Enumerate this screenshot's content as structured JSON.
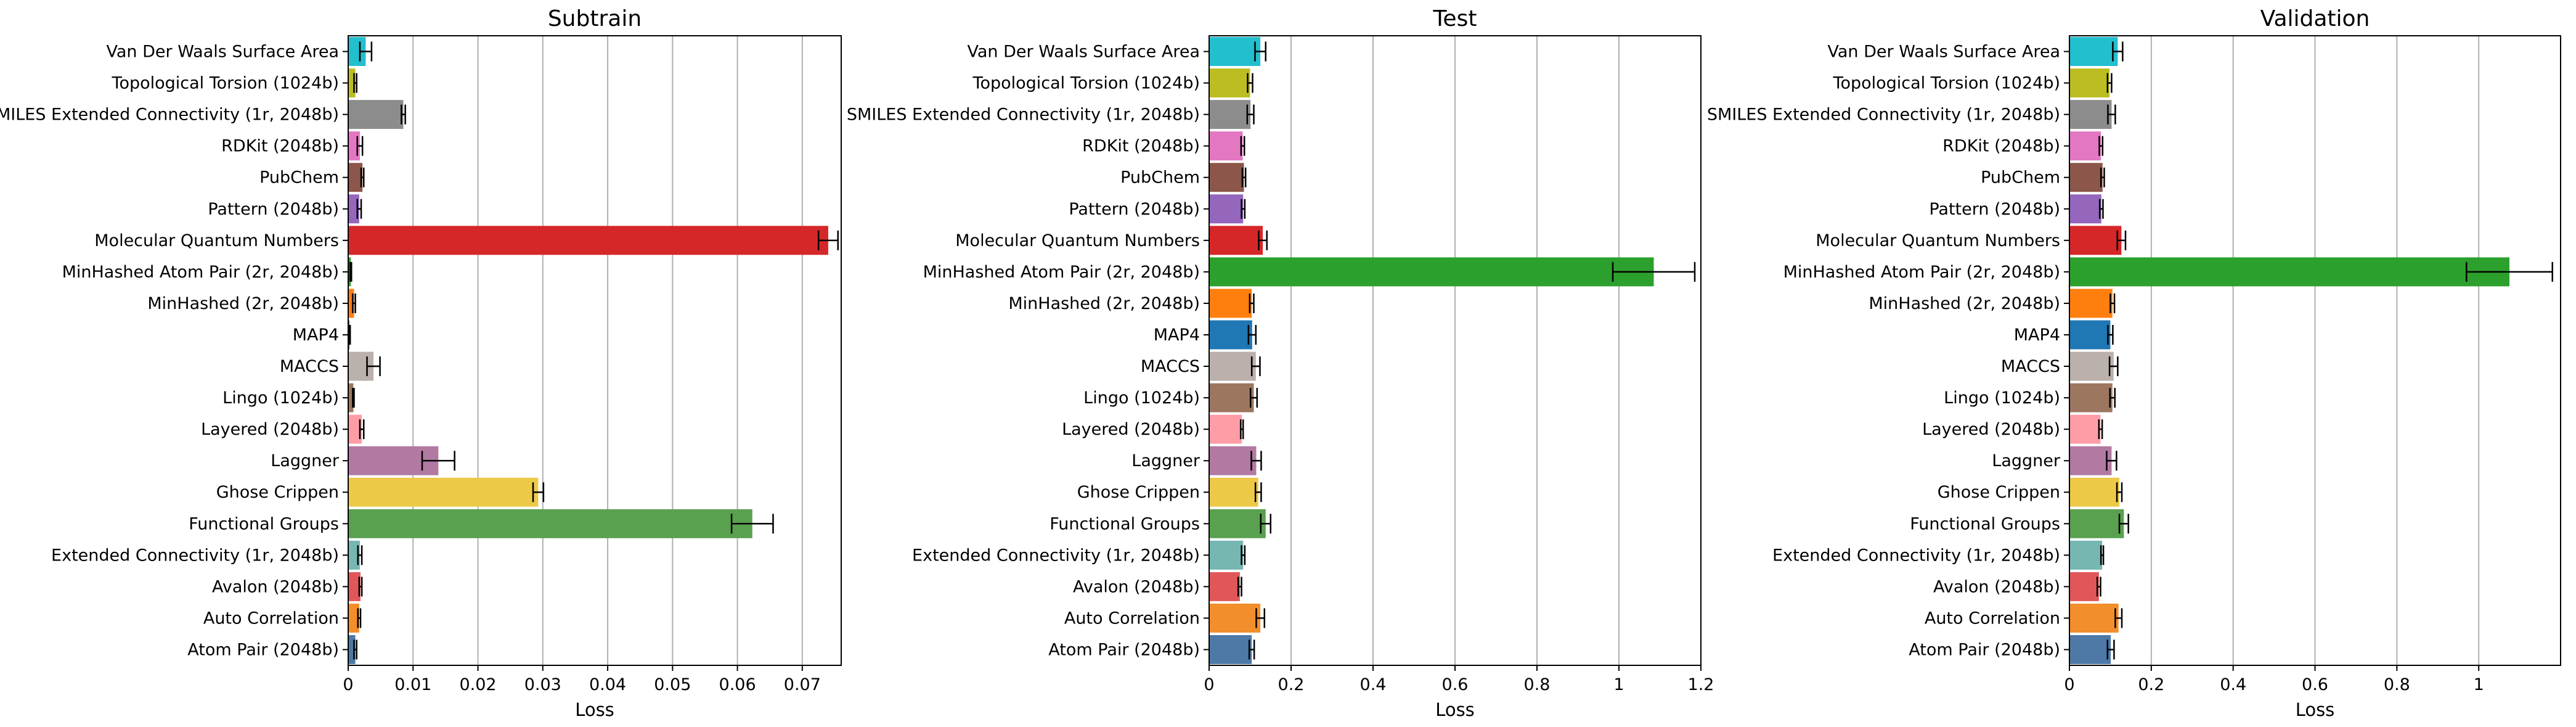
{
  "chart_data": [
    {
      "type": "bar",
      "orientation": "horizontal",
      "title": "Subtrain",
      "xlabel": "Loss",
      "xlim": [
        0,
        0.076
      ],
      "xticks": [
        0,
        0.01,
        0.02,
        0.03,
        0.04,
        0.05,
        0.06,
        0.07
      ],
      "xtick_labels": [
        "0",
        "0.01",
        "0.02",
        "0.03",
        "0.04",
        "0.05",
        "0.06",
        "0.07"
      ],
      "grid": "x",
      "categories": [
        "Van Der Waals Surface Area",
        "Topological Torsion (1024b)",
        "SMILES Extended Connectivity (1r, 2048b)",
        "RDKit (2048b)",
        "PubChem",
        "Pattern (2048b)",
        "Molecular Quantum Numbers",
        "MinHashed Atom Pair (2r, 2048b)",
        "MinHashed (2r, 2048b)",
        "MAP4",
        "MACCS",
        "Lingo (1024b)",
        "Layered (2048b)",
        "Laggner",
        "Ghose Crippen",
        "Functional Groups",
        "Extended Connectivity (1r, 2048b)",
        "Avalon (2048b)",
        "Auto Correlation",
        "Atom Pair (2048b)"
      ],
      "values": [
        0.0027,
        0.0011,
        0.0085,
        0.0018,
        0.0022,
        0.0017,
        0.074,
        0.0004,
        0.0009,
        0.0002,
        0.0039,
        0.0008,
        0.0021,
        0.0139,
        0.0293,
        0.0623,
        0.0018,
        0.0019,
        0.0017,
        0.0011
      ],
      "errors": [
        0.0009,
        0.0002,
        0.0003,
        0.0004,
        0.0002,
        0.0003,
        0.0015,
        0.0001,
        0.0002,
        0.0001,
        0.001,
        0.0001,
        0.0003,
        0.0025,
        0.0008,
        0.0032,
        0.0003,
        0.0002,
        0.0002,
        0.0002
      ],
      "colors": [
        "#22bfcf",
        "#bcbd22",
        "#8c8c8c",
        "#e377c2",
        "#8c564b",
        "#9467bd",
        "#d62728",
        "#2ca02c",
        "#ff7f0e",
        "#1f77b4",
        "#bab0ac",
        "#9d7660",
        "#ff9da7",
        "#b279a2",
        "#edc948",
        "#59a14f",
        "#76b7b2",
        "#e15759",
        "#f28e2b",
        "#4e79a7"
      ]
    },
    {
      "type": "bar",
      "orientation": "horizontal",
      "title": "Test",
      "xlabel": "Loss",
      "xlim": [
        0,
        1.2
      ],
      "xticks": [
        0,
        0.2,
        0.4,
        0.6,
        0.8,
        1.0,
        1.2
      ],
      "xtick_labels": [
        "0",
        "0.2",
        "0.4",
        "0.6",
        "0.8",
        "1",
        "1.2"
      ],
      "grid": "x",
      "categories": [
        "Van Der Waals Surface Area",
        "Topological Torsion (1024b)",
        "SMILES Extended Connectivity (1r, 2048b)",
        "RDKit (2048b)",
        "PubChem",
        "Pattern (2048b)",
        "Molecular Quantum Numbers",
        "MinHashed Atom Pair (2r, 2048b)",
        "MinHashed (2r, 2048b)",
        "MAP4",
        "MACCS",
        "Lingo (1024b)",
        "Layered (2048b)",
        "Laggner",
        "Ghose Crippen",
        "Functional Groups",
        "Extended Connectivity (1r, 2048b)",
        "Avalon (2048b)",
        "Auto Correlation",
        "Atom Pair (2048b)"
      ],
      "values": [
        0.125,
        0.1,
        0.101,
        0.082,
        0.085,
        0.083,
        0.131,
        1.085,
        0.104,
        0.105,
        0.114,
        0.109,
        0.08,
        0.115,
        0.12,
        0.138,
        0.083,
        0.075,
        0.125,
        0.104
      ],
      "errors": [
        0.013,
        0.006,
        0.008,
        0.004,
        0.004,
        0.004,
        0.01,
        0.1,
        0.005,
        0.009,
        0.01,
        0.008,
        0.003,
        0.012,
        0.007,
        0.012,
        0.004,
        0.004,
        0.01,
        0.006
      ],
      "colors": [
        "#22bfcf",
        "#bcbd22",
        "#8c8c8c",
        "#e377c2",
        "#8c564b",
        "#9467bd",
        "#d62728",
        "#2ca02c",
        "#ff7f0e",
        "#1f77b4",
        "#bab0ac",
        "#9d7660",
        "#ff9da7",
        "#b279a2",
        "#edc948",
        "#59a14f",
        "#76b7b2",
        "#e15759",
        "#f28e2b",
        "#4e79a7"
      ]
    },
    {
      "type": "bar",
      "orientation": "horizontal",
      "title": "Validation",
      "xlabel": "Loss",
      "xlim": [
        0,
        1.2
      ],
      "xticks": [
        0,
        0.2,
        0.4,
        0.6,
        0.8,
        1.0
      ],
      "xtick_labels": [
        "0",
        "0.2",
        "0.4",
        "0.6",
        "0.8",
        "1"
      ],
      "grid": "x",
      "categories": [
        "Van Der Waals Surface Area",
        "Topological Torsion (1024b)",
        "SMILES Extended Connectivity (1r, 2048b)",
        "RDKit (2048b)",
        "PubChem",
        "Pattern (2048b)",
        "Molecular Quantum Numbers",
        "MinHashed Atom Pair (2r, 2048b)",
        "MinHashed (2r, 2048b)",
        "MAP4",
        "MACCS",
        "Lingo (1024b)",
        "Layered (2048b)",
        "Laggner",
        "Ghose Crippen",
        "Functional Groups",
        "Extended Connectivity (1r, 2048b)",
        "Avalon (2048b)",
        "Auto Correlation",
        "Atom Pair (2048b)"
      ],
      "values": [
        0.118,
        0.098,
        0.103,
        0.077,
        0.081,
        0.078,
        0.127,
        1.075,
        0.105,
        0.1,
        0.108,
        0.105,
        0.076,
        0.103,
        0.122,
        0.133,
        0.08,
        0.072,
        0.12,
        0.101
      ],
      "errors": [
        0.012,
        0.005,
        0.009,
        0.004,
        0.004,
        0.004,
        0.01,
        0.105,
        0.005,
        0.006,
        0.01,
        0.006,
        0.004,
        0.012,
        0.006,
        0.011,
        0.003,
        0.004,
        0.008,
        0.008
      ],
      "colors": [
        "#22bfcf",
        "#bcbd22",
        "#8c8c8c",
        "#e377c2",
        "#8c564b",
        "#9467bd",
        "#d62728",
        "#2ca02c",
        "#ff7f0e",
        "#1f77b4",
        "#bab0ac",
        "#9d7660",
        "#ff9da7",
        "#b279a2",
        "#edc948",
        "#59a14f",
        "#76b7b2",
        "#e15759",
        "#f28e2b",
        "#4e79a7"
      ]
    }
  ]
}
